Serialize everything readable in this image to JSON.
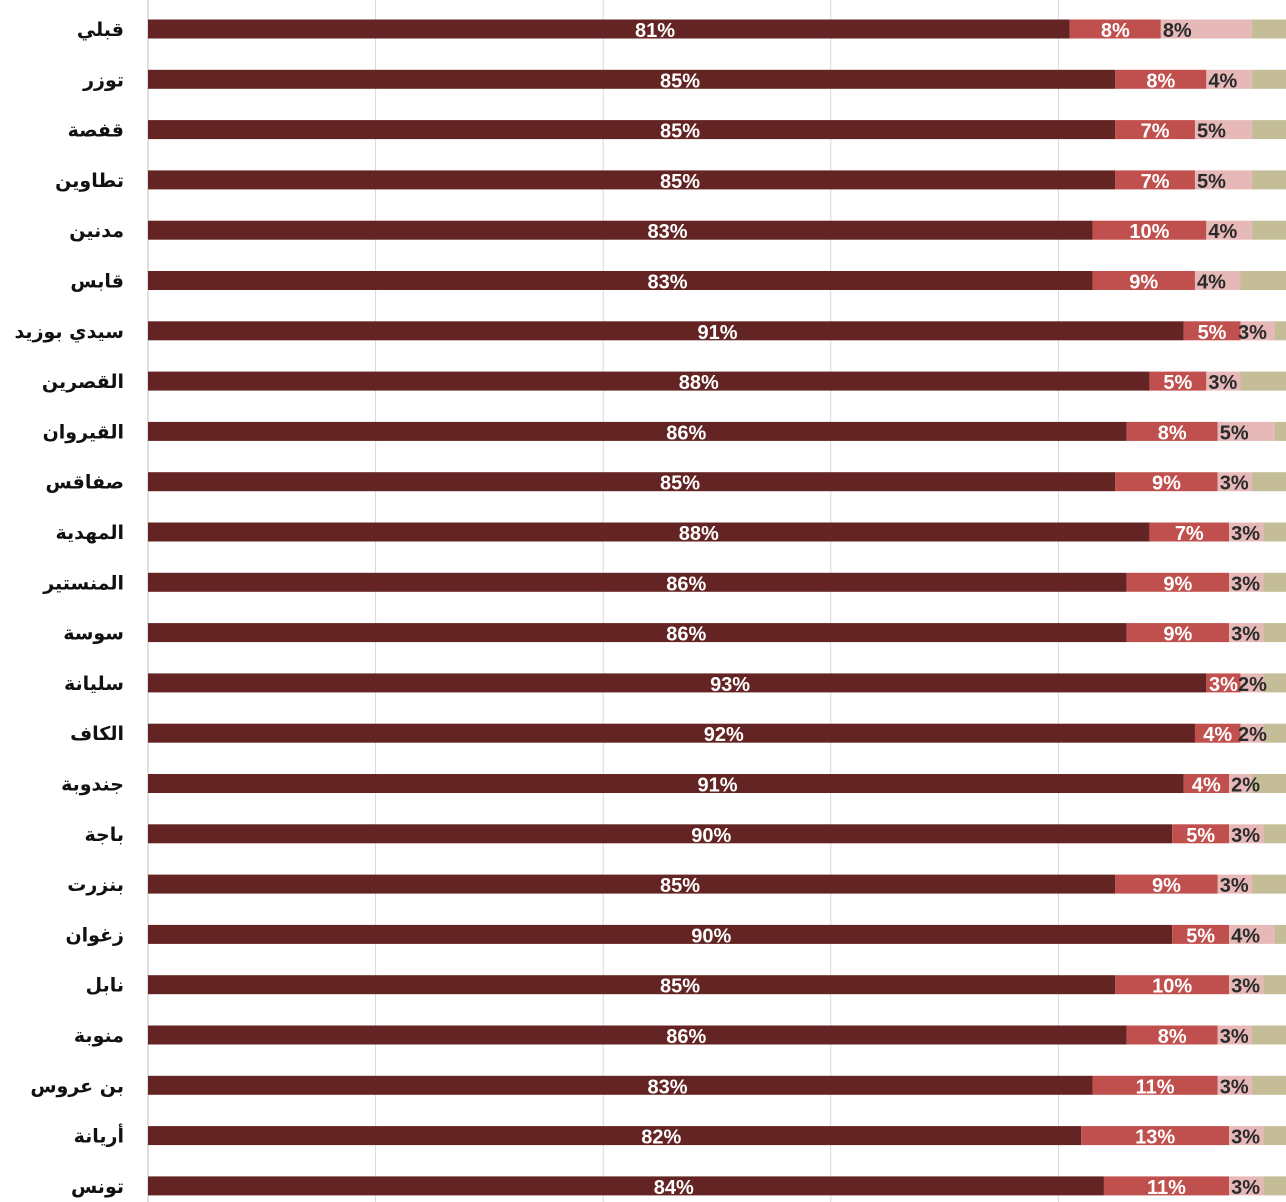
{
  "chart_data": {
    "type": "bar",
    "orientation": "horizontal",
    "stacked": true,
    "grid": true,
    "xlim": [
      0,
      100
    ],
    "categories": [
      "قبلي",
      "توزر",
      "قفصة",
      "تطاوين",
      "مدنين",
      "قابس",
      "سيدي بوزيد",
      "القصرين",
      "القيروان",
      "صفاقس",
      "المهدية",
      "المنستير",
      "سوسة",
      "سليانة",
      "الكاف",
      "جندوبة",
      "باجة",
      "بنزرت",
      "زغوان",
      "نابل",
      "منوبة",
      "بن عروس",
      "أريانة",
      "تونس"
    ],
    "series": [
      {
        "values": [
          81,
          85,
          85,
          85,
          83,
          83,
          91,
          88,
          86,
          85,
          88,
          86,
          86,
          93,
          92,
          91,
          90,
          85,
          90,
          85,
          86,
          83,
          82,
          84
        ],
        "color": "#632423"
      },
      {
        "values": [
          8,
          8,
          7,
          7,
          10,
          9,
          5,
          5,
          8,
          9,
          7,
          9,
          9,
          3,
          4,
          4,
          5,
          9,
          5,
          10,
          8,
          11,
          13,
          11
        ],
        "color": "#c0504d"
      },
      {
        "values": [
          8,
          4,
          5,
          5,
          4,
          4,
          3,
          3,
          5,
          3,
          3,
          3,
          3,
          2,
          2,
          2,
          3,
          3,
          4,
          3,
          3,
          3,
          3,
          3
        ],
        "color": "#e6b9b8"
      },
      {
        "values": [
          3,
          3,
          3,
          3,
          3,
          4,
          1,
          4,
          1,
          3,
          2,
          2,
          2,
          2,
          2,
          3,
          2,
          3,
          1,
          2,
          3,
          3,
          2,
          2
        ],
        "color": "#c4bd97"
      }
    ],
    "labels": {
      "s1": [
        "81%",
        "85%",
        "85%",
        "85%",
        "83%",
        "83%",
        "91%",
        "88%",
        "86%",
        "85%",
        "88%",
        "86%",
        "86%",
        "93%",
        "92%",
        "91%",
        "90%",
        "85%",
        "90%",
        "85%",
        "86%",
        "83%",
        "82%",
        "84%"
      ],
      "s2": [
        "8%",
        "8%",
        "7%",
        "7%",
        "10%",
        "9%",
        "5%",
        "5%",
        "8%",
        "9%",
        "7%",
        "9%",
        "9%",
        "3%",
        "4%",
        "4%",
        "5%",
        "9%",
        "5%",
        "10%",
        "8%",
        "11%",
        "13%",
        "11%"
      ],
      "s3": [
        "8%",
        "4%",
        "5%",
        "5%",
        "4%",
        "4%",
        "3%",
        "3%",
        "5%",
        "3%",
        "3%",
        "3%",
        "3%",
        "2%",
        "2%",
        "2%",
        "3%",
        "3%",
        "4%",
        "3%",
        "3%",
        "3%",
        "3%",
        "3%"
      ]
    },
    "colors": {
      "gridline": "#d9d9d9",
      "axis": "#bfbfbf"
    }
  }
}
